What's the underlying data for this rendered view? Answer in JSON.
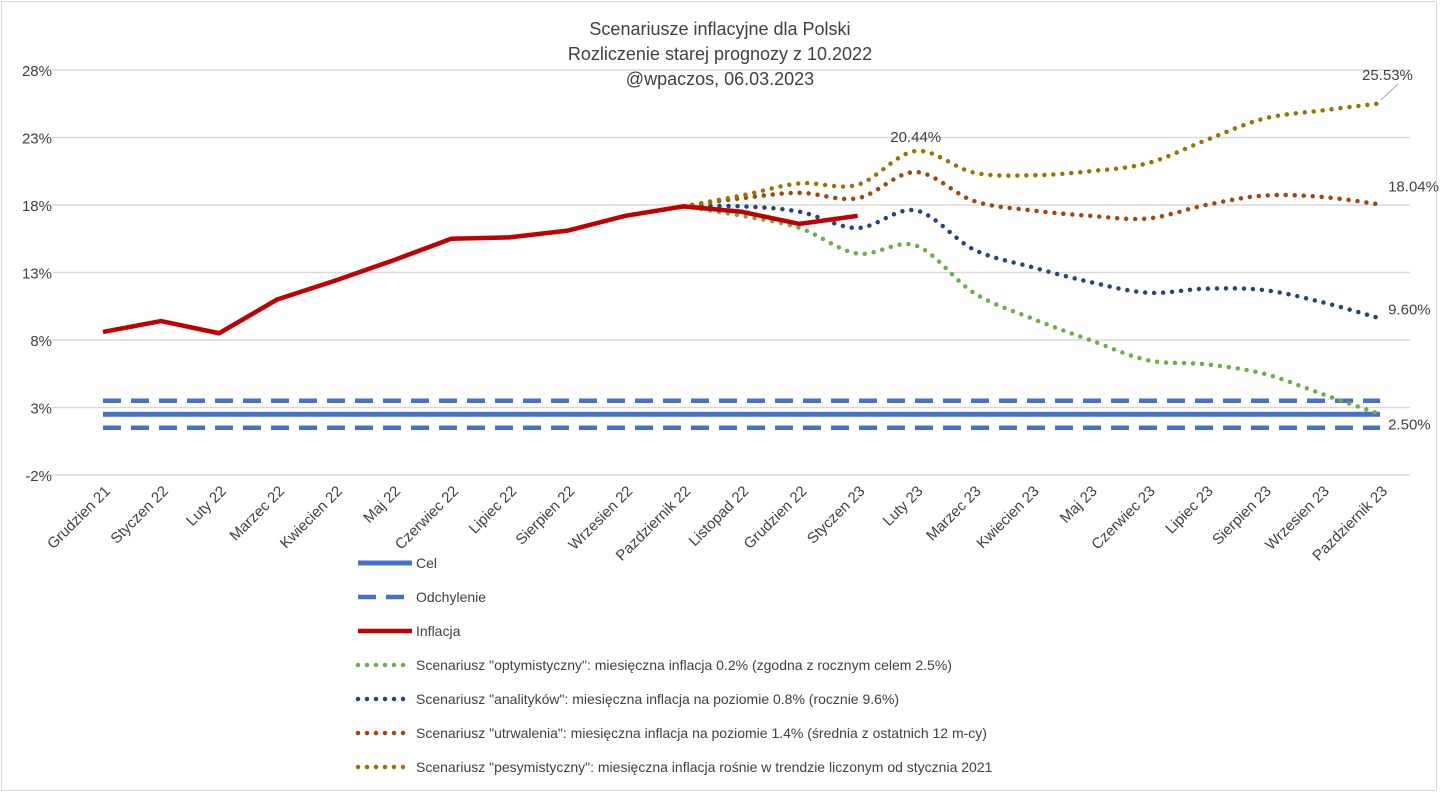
{
  "chart_data": {
    "type": "line",
    "title": [
      "Scenariusze inflacyjne dla Polski",
      "Rozliczenie starej prognozy z 10.2022",
      "@wpaczos, 06.03.2023"
    ],
    "xlabel": "",
    "ylabel": "",
    "ylim": [
      -2,
      28
    ],
    "yticks": [
      -2,
      3,
      8,
      13,
      18,
      23,
      28
    ],
    "ytick_labels": [
      "-2%",
      "3%",
      "8%",
      "13%",
      "18%",
      "23%",
      "28%"
    ],
    "grid": true,
    "legend_position": "bottom",
    "categories": [
      "Grudzien 21",
      "Styczen 22",
      "Luty 22",
      "Marzec 22",
      "Kwiecien 22",
      "Maj 22",
      "Czerwiec 22",
      "Lipiec 22",
      "Sierpien 22",
      "Wrzesien 22",
      "Pazdziernik 22",
      "Listopad 22",
      "Grudzien 22",
      "Styczen 23",
      "Luty 23",
      "Marzec 23",
      "Kwiecien 23",
      "Maj 23",
      "Czerwiec 23",
      "Lipiec 23",
      "Sierpien 23",
      "Wrzesien 23",
      "Pazdziernik 23"
    ],
    "series": [
      {
        "name": "Cel",
        "color": "#4472c4",
        "style": "solid",
        "values": [
          2.5,
          2.5,
          2.5,
          2.5,
          2.5,
          2.5,
          2.5,
          2.5,
          2.5,
          2.5,
          2.5,
          2.5,
          2.5,
          2.5,
          2.5,
          2.5,
          2.5,
          2.5,
          2.5,
          2.5,
          2.5,
          2.5,
          2.5
        ]
      },
      {
        "name": "Odchylenie",
        "color": "#4472c4",
        "style": "dashed",
        "values": [
          3.5,
          3.5,
          3.5,
          3.5,
          3.5,
          3.5,
          3.5,
          3.5,
          3.5,
          3.5,
          3.5,
          3.5,
          3.5,
          3.5,
          3.5,
          3.5,
          3.5,
          3.5,
          3.5,
          3.5,
          3.5,
          3.5,
          3.5
        ]
      },
      {
        "name": "Odchylenie-lower",
        "legend": false,
        "color": "#4472c4",
        "style": "dashed",
        "values": [
          1.5,
          1.5,
          1.5,
          1.5,
          1.5,
          1.5,
          1.5,
          1.5,
          1.5,
          1.5,
          1.5,
          1.5,
          1.5,
          1.5,
          1.5,
          1.5,
          1.5,
          1.5,
          1.5,
          1.5,
          1.5,
          1.5,
          1.5
        ]
      },
      {
        "name": "Inflacja",
        "color": "#c00000",
        "style": "solid",
        "values": [
          8.6,
          9.4,
          8.5,
          11.0,
          12.4,
          13.9,
          15.5,
          15.6,
          16.1,
          17.2,
          17.9,
          17.5,
          16.6,
          17.2,
          null,
          null,
          null,
          null,
          null,
          null,
          null,
          null,
          null
        ]
      },
      {
        "name": "Scenariusz \"optymistyczny\": miesięczna inflacja 0.2% (zgodna z rocznym celem 2.5%)",
        "color": "#70ad47",
        "style": "dotted",
        "values": [
          null,
          null,
          null,
          null,
          null,
          null,
          null,
          null,
          null,
          null,
          17.9,
          17.2,
          16.3,
          14.4,
          15.0,
          11.5,
          9.6,
          8.0,
          6.5,
          6.2,
          5.5,
          4.0,
          2.5
        ]
      },
      {
        "name": "Scenariusz \"analityków\": miesięczna inflacja na poziomie 0.8% (rocznie 9.6%)",
        "color": "#264478",
        "style": "dotted",
        "values": [
          null,
          null,
          null,
          null,
          null,
          null,
          null,
          null,
          null,
          null,
          17.9,
          17.9,
          17.5,
          16.3,
          17.6,
          14.7,
          13.4,
          12.3,
          11.5,
          11.8,
          11.7,
          10.8,
          9.6
        ]
      },
      {
        "name": "Scenariusz \"utrwalenia\": miesięczna inflacja na poziomie 1.4% (średnia z ostatnich 12 m-cy)",
        "color": "#9e480e",
        "style": "dotted",
        "values": [
          null,
          null,
          null,
          null,
          null,
          null,
          null,
          null,
          null,
          null,
          17.9,
          18.5,
          18.9,
          18.5,
          20.44,
          18.3,
          17.6,
          17.2,
          17.0,
          18.0,
          18.7,
          18.6,
          18.04
        ]
      },
      {
        "name": "Scenariusz \"pesymistyczny\": miesięczna inflacja rośnie w trendzie liczonym od stycznia 2021",
        "color": "#997300",
        "style": "dotted",
        "values": [
          null,
          null,
          null,
          null,
          null,
          null,
          null,
          null,
          null,
          null,
          17.9,
          18.7,
          19.6,
          19.5,
          22.0,
          20.4,
          20.2,
          20.5,
          21.1,
          22.8,
          24.4,
          25.0,
          25.53
        ]
      }
    ],
    "data_labels": [
      {
        "series": 7,
        "index": 22,
        "text": "25.53%"
      },
      {
        "series": 6,
        "index": 22,
        "text": "18.04%"
      },
      {
        "series": 6,
        "index": 14,
        "text": "20.44%"
      },
      {
        "series": 5,
        "index": 22,
        "text": "9.60%"
      },
      {
        "series": 0,
        "index": 22,
        "text": "2.50%"
      }
    ]
  }
}
